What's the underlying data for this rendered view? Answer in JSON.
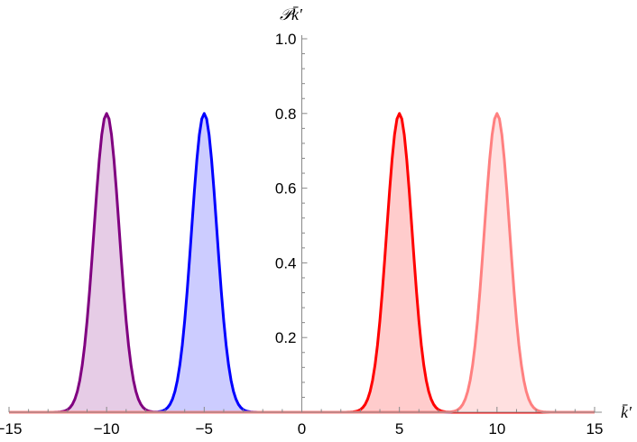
{
  "chart_data": {
    "type": "area",
    "xlabel": "k̄′",
    "ylabel": "𝒫k̄′",
    "xlim": [
      -15,
      15
    ],
    "ylim": [
      0,
      1.0
    ],
    "x_ticks": [
      -15,
      -10,
      -5,
      0,
      5,
      10,
      15
    ],
    "x_tick_labels": [
      "−15",
      "−10",
      "−5",
      "0",
      "5",
      "10",
      "15"
    ],
    "y_ticks": [
      0.2,
      0.4,
      0.6,
      0.8,
      1.0
    ],
    "y_tick_labels": [
      "0.2",
      "0.4",
      "0.6",
      "0.8",
      "1.0"
    ],
    "grid": false,
    "series": [
      {
        "center": -10,
        "peak": 0.8,
        "width": 0.65,
        "color": "#800080",
        "fill": "#e6cce6"
      },
      {
        "center": -5,
        "peak": 0.8,
        "width": 0.65,
        "color": "#0000ff",
        "fill": "#ccccff"
      },
      {
        "center": 5,
        "peak": 0.8,
        "width": 0.65,
        "color": "#ff0000",
        "fill": "#ffcccc"
      },
      {
        "center": 10,
        "peak": 0.8,
        "width": 0.65,
        "color": "#ff8080",
        "fill": "#ffe0e0"
      }
    ],
    "baseline_color": "#ff0000"
  }
}
